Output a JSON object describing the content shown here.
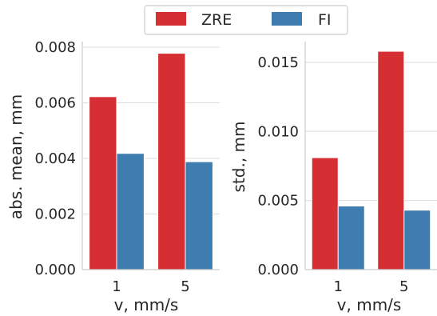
{
  "legend": {
    "entries": [
      {
        "label": "ZRE",
        "color": "#d62f33"
      },
      {
        "label": "FI",
        "color": "#3f7db1"
      }
    ],
    "placement": "top-center"
  },
  "chart_data": [
    {
      "type": "bar",
      "categories": [
        "1",
        "5"
      ],
      "series": [
        {
          "name": "ZRE",
          "values": [
            0.00622,
            0.00778
          ],
          "color": "#d62f33"
        },
        {
          "name": "FI",
          "values": [
            0.00418,
            0.00388
          ],
          "color": "#3f7db1"
        }
      ],
      "xlabel": "v, mm/s",
      "ylabel": "abs. mean, mm",
      "ylim": [
        0,
        0.0082
      ],
      "yticks": [
        "0.000",
        "0.002",
        "0.004",
        "0.006",
        "0.008"
      ],
      "grid": true
    },
    {
      "type": "bar",
      "categories": [
        "1",
        "5"
      ],
      "series": [
        {
          "name": "ZRE",
          "values": [
            0.0081,
            0.0158
          ],
          "color": "#d62f33"
        },
        {
          "name": "FI",
          "values": [
            0.0046,
            0.0043
          ],
          "color": "#3f7db1"
        }
      ],
      "xlabel": "v, mm/s",
      "ylabel": "std., mm",
      "ylim": [
        0,
        0.0165
      ],
      "yticks": [
        "0.000",
        "0.005",
        "0.010",
        "0.015"
      ],
      "grid": true
    }
  ]
}
